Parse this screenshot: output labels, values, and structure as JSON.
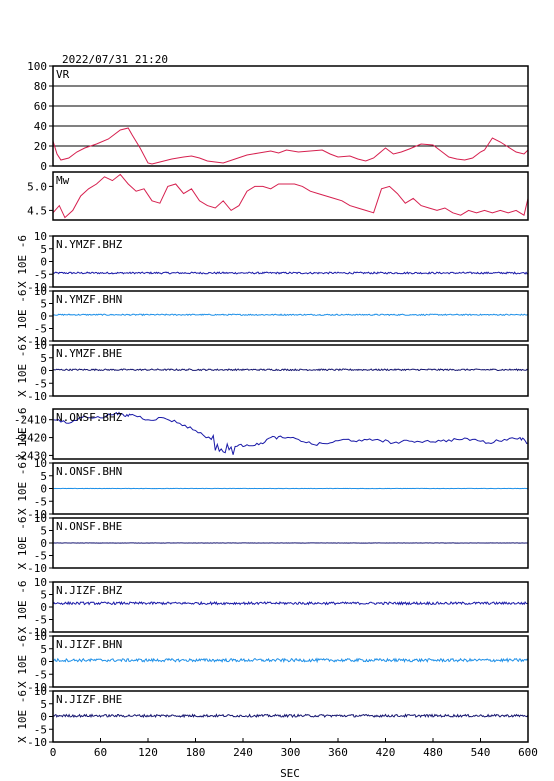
{
  "header": {
    "title": "2022/07/31 21:20"
  },
  "colors": {
    "vr": "#d6204f",
    "mw": "#d6204f",
    "bhz": "#1a1aa8",
    "bhn": "#1e90e8",
    "bhe": "#151570",
    "grid": "#000000"
  },
  "chart_data": {
    "type": "line",
    "xlabel": "SEC",
    "x_ticks": [
      0,
      60,
      120,
      180,
      240,
      300,
      360,
      420,
      480,
      540,
      600
    ],
    "xlim": [
      0,
      600
    ],
    "panels": [
      {
        "id": "vr",
        "label": "VR",
        "ylim": [
          0,
          100
        ],
        "y_ticks": [
          0,
          20,
          40,
          60,
          80,
          100
        ],
        "ylabel": "",
        "grid": true,
        "color_key": "vr",
        "series": {
          "x": [
            0,
            5,
            10,
            20,
            30,
            40,
            55,
            70,
            85,
            95,
            100,
            110,
            120,
            125,
            135,
            150,
            165,
            175,
            185,
            195,
            205,
            215,
            230,
            245,
            260,
            275,
            285,
            295,
            310,
            325,
            340,
            350,
            360,
            375,
            385,
            395,
            405,
            420,
            430,
            440,
            450,
            465,
            480,
            490,
            500,
            510,
            520,
            530,
            540,
            545,
            555,
            565,
            575,
            585,
            595,
            600
          ],
          "y": [
            25,
            12,
            6,
            8,
            14,
            18,
            22,
            27,
            36,
            38,
            31,
            18,
            3,
            2,
            4,
            7,
            9,
            10,
            8,
            5,
            4,
            3,
            7,
            11,
            13,
            15,
            13,
            16,
            14,
            15,
            16,
            12,
            9,
            10,
            7,
            5,
            8,
            18,
            12,
            14,
            17,
            22,
            21,
            15,
            9,
            7,
            6,
            8,
            14,
            16,
            28,
            24,
            19,
            14,
            12,
            16
          ]
        }
      },
      {
        "id": "mw",
        "label": "Mw",
        "ylim": [
          4.3,
          5.3
        ],
        "y_ticks": [
          4.5,
          5.0
        ],
        "ylabel": "",
        "grid": false,
        "color_key": "mw",
        "series": {
          "x": [
            0,
            8,
            15,
            25,
            35,
            45,
            55,
            65,
            75,
            85,
            95,
            105,
            115,
            125,
            135,
            145,
            155,
            165,
            175,
            185,
            195,
            205,
            215,
            225,
            235,
            245,
            255,
            265,
            275,
            285,
            295,
            305,
            315,
            325,
            335,
            345,
            355,
            365,
            375,
            385,
            395,
            405,
            415,
            425,
            435,
            445,
            455,
            465,
            475,
            485,
            495,
            505,
            515,
            525,
            535,
            545,
            555,
            565,
            575,
            585,
            595,
            600
          ],
          "y": [
            4.45,
            4.6,
            4.35,
            4.5,
            4.8,
            4.95,
            5.05,
            5.2,
            5.12,
            5.25,
            5.05,
            4.9,
            4.95,
            4.7,
            4.65,
            5.0,
            5.05,
            4.85,
            4.95,
            4.7,
            4.6,
            4.55,
            4.7,
            4.5,
            4.6,
            4.9,
            5.0,
            5.0,
            4.95,
            5.05,
            5.05,
            5.05,
            5.0,
            4.9,
            4.85,
            4.8,
            4.75,
            4.7,
            4.6,
            4.55,
            4.5,
            4.45,
            4.95,
            5.0,
            4.85,
            4.65,
            4.75,
            4.6,
            4.55,
            4.5,
            4.55,
            4.45,
            4.4,
            4.5,
            4.45,
            4.5,
            4.45,
            4.5,
            4.45,
            4.5,
            4.4,
            4.75
          ]
        }
      },
      {
        "id": "ymzf-bhz",
        "label": "N.YMZF.BHZ",
        "ylim": [
          -10,
          10
        ],
        "y_ticks": [
          -10,
          -5,
          0,
          5,
          10
        ],
        "ylabel": "X 10E -6",
        "offset": -4.5,
        "noise": 0.35,
        "color_key": "bhz"
      },
      {
        "id": "ymzf-bhn",
        "label": "N.YMZF.BHN",
        "ylim": [
          -10,
          10
        ],
        "y_ticks": [
          -10,
          -5,
          0,
          5,
          10
        ],
        "ylabel": "X 10E -6",
        "offset": 0.5,
        "noise": 0.25,
        "color_key": "bhn"
      },
      {
        "id": "ymzf-bhe",
        "label": "N.YMZF.BHE",
        "ylim": [
          -10,
          10
        ],
        "y_ticks": [
          -10,
          -5,
          0,
          5,
          10
        ],
        "ylabel": "X 10E -6",
        "offset": 0.3,
        "noise": 0.3,
        "color_key": "bhe"
      },
      {
        "id": "onsf-bhz",
        "label": "N.ONSF.BHZ",
        "ylim": [
          -2432,
          -2404
        ],
        "y_ticks": [
          -2430,
          -2420,
          -2410
        ],
        "ylabel": "X 10E -6",
        "color_key": "bhz",
        "series": {
          "x": [
            0,
            20,
            40,
            60,
            80,
            90,
            100,
            120,
            140,
            160,
            180,
            200,
            215,
            230,
            245,
            260,
            275,
            290,
            310,
            330,
            350,
            370,
            390,
            410,
            430,
            450,
            470,
            490,
            510,
            530,
            550,
            570,
            590,
            600
          ],
          "y": [
            -2410,
            -2412,
            -2408,
            -2409,
            -2406,
            -2408,
            -2407,
            -2410,
            -2409,
            -2412,
            -2416,
            -2421,
            -2428,
            -2425,
            -2424,
            -2424,
            -2420,
            -2420,
            -2421,
            -2424,
            -2423,
            -2421,
            -2422,
            -2421,
            -2423,
            -2422,
            -2422,
            -2422,
            -2421,
            -2421,
            -2423,
            -2421,
            -2420,
            -2423
          ]
        }
      },
      {
        "id": "onsf-bhn",
        "label": "N.ONSF.BHN",
        "ylim": [
          -10,
          10
        ],
        "y_ticks": [
          -10,
          -5,
          0,
          5,
          10
        ],
        "ylabel": "X 10E -6",
        "offset": 0.0,
        "noise": 0.05,
        "color_key": "bhn"
      },
      {
        "id": "onsf-bhe",
        "label": "N.ONSF.BHE",
        "ylim": [
          -10,
          10
        ],
        "y_ticks": [
          -10,
          -5,
          0,
          5,
          10
        ],
        "ylabel": "X 10E -6",
        "offset": 0.0,
        "noise": 0.05,
        "color_key": "bhe"
      },
      {
        "id": "jizf-bhz",
        "label": "N.JIZF.BHZ",
        "ylim": [
          -10,
          10
        ],
        "y_ticks": [
          -10,
          -5,
          0,
          5,
          10
        ],
        "ylabel": "X 10E -6",
        "offset": 1.5,
        "noise": 0.5,
        "color_key": "bhz"
      },
      {
        "id": "jizf-bhn",
        "label": "N.JIZF.BHN",
        "ylim": [
          -10,
          10
        ],
        "y_ticks": [
          -10,
          -5,
          0,
          5,
          10
        ],
        "ylabel": "X 10E -6",
        "offset": 0.5,
        "noise": 0.6,
        "color_key": "bhn"
      },
      {
        "id": "jizf-bhe",
        "label": "N.JIZF.BHE",
        "ylim": [
          -10,
          10
        ],
        "y_ticks": [
          -10,
          -5,
          0,
          5,
          10
        ],
        "ylabel": "X 10E -6",
        "offset": 0.3,
        "noise": 0.5,
        "color_key": "bhe"
      }
    ]
  }
}
